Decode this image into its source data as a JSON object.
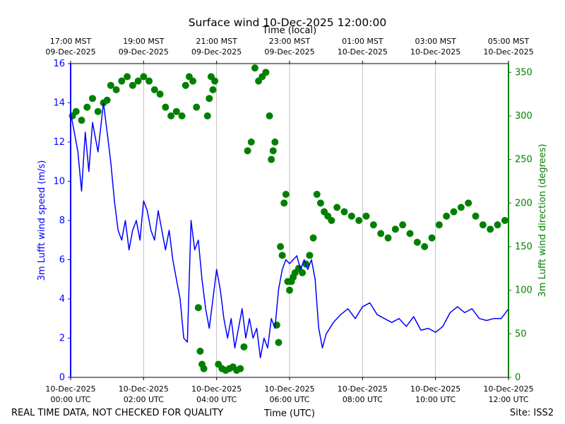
{
  "chart_data": {
    "type": "line",
    "title": "Surface wind 10-Dec-2025 12:00:00",
    "top_axis_label": "Time (local)",
    "top_tick_labels": [
      [
        "17:00 MST",
        "09-Dec-2025"
      ],
      [
        "19:00 MST",
        "09-Dec-2025"
      ],
      [
        "21:00 MST",
        "09-Dec-2025"
      ],
      [
        "23:00 MST",
        "09-Dec-2025"
      ],
      [
        "01:00 MST",
        "10-Dec-2025"
      ],
      [
        "03:00 MST",
        "10-Dec-2025"
      ],
      [
        "05:00 MST",
        "10-Dec-2025"
      ]
    ],
    "xlabel": "Time (UTC)",
    "x_tick_labels": [
      [
        "10-Dec-2025",
        "00:00 UTC"
      ],
      [
        "10-Dec-2025",
        "02:00 UTC"
      ],
      [
        "10-Dec-2025",
        "04:00 UTC"
      ],
      [
        "10-Dec-2025",
        "06:00 UTC"
      ],
      [
        "10-Dec-2025",
        "08:00 UTC"
      ],
      [
        "10-Dec-2025",
        "10:00 UTC"
      ],
      [
        "10-Dec-2025",
        "12:00 UTC"
      ]
    ],
    "xlim_hours_utc": [
      0,
      12
    ],
    "grid": "vertical",
    "ylabel_left": "3m Lufft wind speed (m/s)",
    "ylim_left": [
      0,
      16
    ],
    "yticks_left": [
      0,
      2,
      4,
      6,
      8,
      10,
      12,
      14,
      16
    ],
    "ylabel_right": "3m Lufft wind direction (degrees)",
    "ylim_right": [
      0,
      360
    ],
    "yticks_right": [
      0,
      50,
      100,
      150,
      200,
      250,
      300,
      350
    ],
    "series": [
      {
        "name": "3m Lufft wind speed",
        "kind": "line",
        "axis": "left",
        "color": "#0000ff",
        "x_hours": [
          0,
          0.1,
          0.2,
          0.3,
          0.4,
          0.5,
          0.6,
          0.75,
          0.9,
          1.0,
          1.1,
          1.2,
          1.3,
          1.4,
          1.5,
          1.6,
          1.7,
          1.8,
          1.9,
          2.0,
          2.1,
          2.2,
          2.3,
          2.4,
          2.5,
          2.6,
          2.7,
          2.8,
          2.9,
          3.0,
          3.1,
          3.2,
          3.3,
          3.4,
          3.5,
          3.6,
          3.7,
          3.8,
          3.9,
          4.0,
          4.1,
          4.2,
          4.3,
          4.4,
          4.5,
          4.6,
          4.7,
          4.8,
          4.9,
          5.0,
          5.1,
          5.2,
          5.3,
          5.4,
          5.5,
          5.6,
          5.7,
          5.8,
          5.9,
          6.0,
          6.1,
          6.2,
          6.3,
          6.4,
          6.5,
          6.6,
          6.7,
          6.8,
          6.9,
          7.0,
          7.2,
          7.4,
          7.6,
          7.8,
          8.0,
          8.2,
          8.4,
          8.6,
          8.8,
          9.0,
          9.2,
          9.4,
          9.6,
          9.8,
          10.0,
          10.2,
          10.4,
          10.6,
          10.8,
          11.0,
          11.2,
          11.4,
          11.6,
          11.8,
          12.0
        ],
        "values": [
          13.5,
          12.5,
          11.5,
          9.5,
          12.5,
          10.5,
          13.0,
          11.5,
          14.0,
          12.5,
          11.0,
          9.0,
          7.5,
          7.0,
          8.0,
          6.5,
          7.5,
          8.0,
          7.0,
          9.0,
          8.5,
          7.5,
          7.0,
          8.5,
          7.5,
          6.5,
          7.5,
          6.0,
          5.0,
          4.0,
          2.0,
          1.8,
          8.0,
          6.5,
          7.0,
          5.0,
          3.5,
          2.5,
          4.0,
          5.5,
          4.5,
          3.0,
          2.0,
          3.0,
          1.5,
          2.5,
          3.5,
          2.0,
          3.0,
          2.0,
          2.5,
          1.0,
          2.0,
          1.5,
          3.0,
          2.5,
          4.5,
          5.5,
          6.0,
          5.8,
          6.0,
          6.2,
          5.5,
          6.0,
          5.5,
          6.0,
          5.0,
          2.5,
          1.5,
          2.2,
          2.8,
          3.2,
          3.5,
          3.0,
          3.6,
          3.8,
          3.2,
          3.0,
          2.8,
          3.0,
          2.6,
          3.1,
          2.4,
          2.5,
          2.3,
          2.6,
          3.3,
          3.6,
          3.3,
          3.5,
          3.0,
          2.9,
          3.0,
          3.0,
          3.5
        ]
      },
      {
        "name": "3m Lufft wind direction",
        "kind": "scatter",
        "axis": "right",
        "color": "#008000",
        "x_hours": [
          0.05,
          0.15,
          0.3,
          0.45,
          0.6,
          0.75,
          0.9,
          1.0,
          1.1,
          1.25,
          1.4,
          1.55,
          1.7,
          1.85,
          2.0,
          2.15,
          2.3,
          2.45,
          2.6,
          2.75,
          2.9,
          3.05,
          3.15,
          3.25,
          3.35,
          3.45,
          3.5,
          3.55,
          3.6,
          3.65,
          3.75,
          3.8,
          3.85,
          3.9,
          3.95,
          4.05,
          4.15,
          4.25,
          4.35,
          4.45,
          4.55,
          4.65,
          4.75,
          4.85,
          4.95,
          5.05,
          5.15,
          5.25,
          5.35,
          5.45,
          5.5,
          5.55,
          5.6,
          5.65,
          5.7,
          5.75,
          5.8,
          5.85,
          5.9,
          5.95,
          6.0,
          6.05,
          6.1,
          6.15,
          6.25,
          6.35,
          6.45,
          6.55,
          6.65,
          6.75,
          6.85,
          6.95,
          7.05,
          7.15,
          7.3,
          7.5,
          7.7,
          7.9,
          8.1,
          8.3,
          8.5,
          8.7,
          8.9,
          9.1,
          9.3,
          9.5,
          9.7,
          9.9,
          10.1,
          10.3,
          10.5,
          10.7,
          10.9,
          11.1,
          11.3,
          11.5,
          11.7,
          11.9
        ],
        "values": [
          300,
          305,
          295,
          310,
          320,
          305,
          315,
          318,
          335,
          330,
          340,
          345,
          335,
          340,
          345,
          340,
          330,
          325,
          310,
          300,
          305,
          300,
          335,
          345,
          340,
          310,
          80,
          30,
          15,
          10,
          300,
          320,
          345,
          330,
          340,
          15,
          10,
          8,
          10,
          12,
          8,
          10,
          35,
          260,
          270,
          355,
          340,
          345,
          350,
          300,
          250,
          260,
          270,
          60,
          40,
          150,
          140,
          200,
          210,
          110,
          100,
          110,
          115,
          120,
          125,
          120,
          130,
          140,
          160,
          210,
          200,
          190,
          185,
          180,
          195,
          190,
          185,
          180,
          185,
          175,
          165,
          160,
          170,
          175,
          165,
          155,
          150,
          160,
          175,
          185,
          190,
          195,
          200,
          185,
          175,
          170,
          175,
          180
        ]
      }
    ],
    "annotations": {
      "footer_left": "REAL TIME DATA, NOT CHECKED FOR QUALITY",
      "footer_right": "Site: ISS2"
    },
    "colors": {
      "speed": "#0000ff",
      "direction": "#008000",
      "grid": "#b0b0b0",
      "frame": "#000000"
    }
  }
}
